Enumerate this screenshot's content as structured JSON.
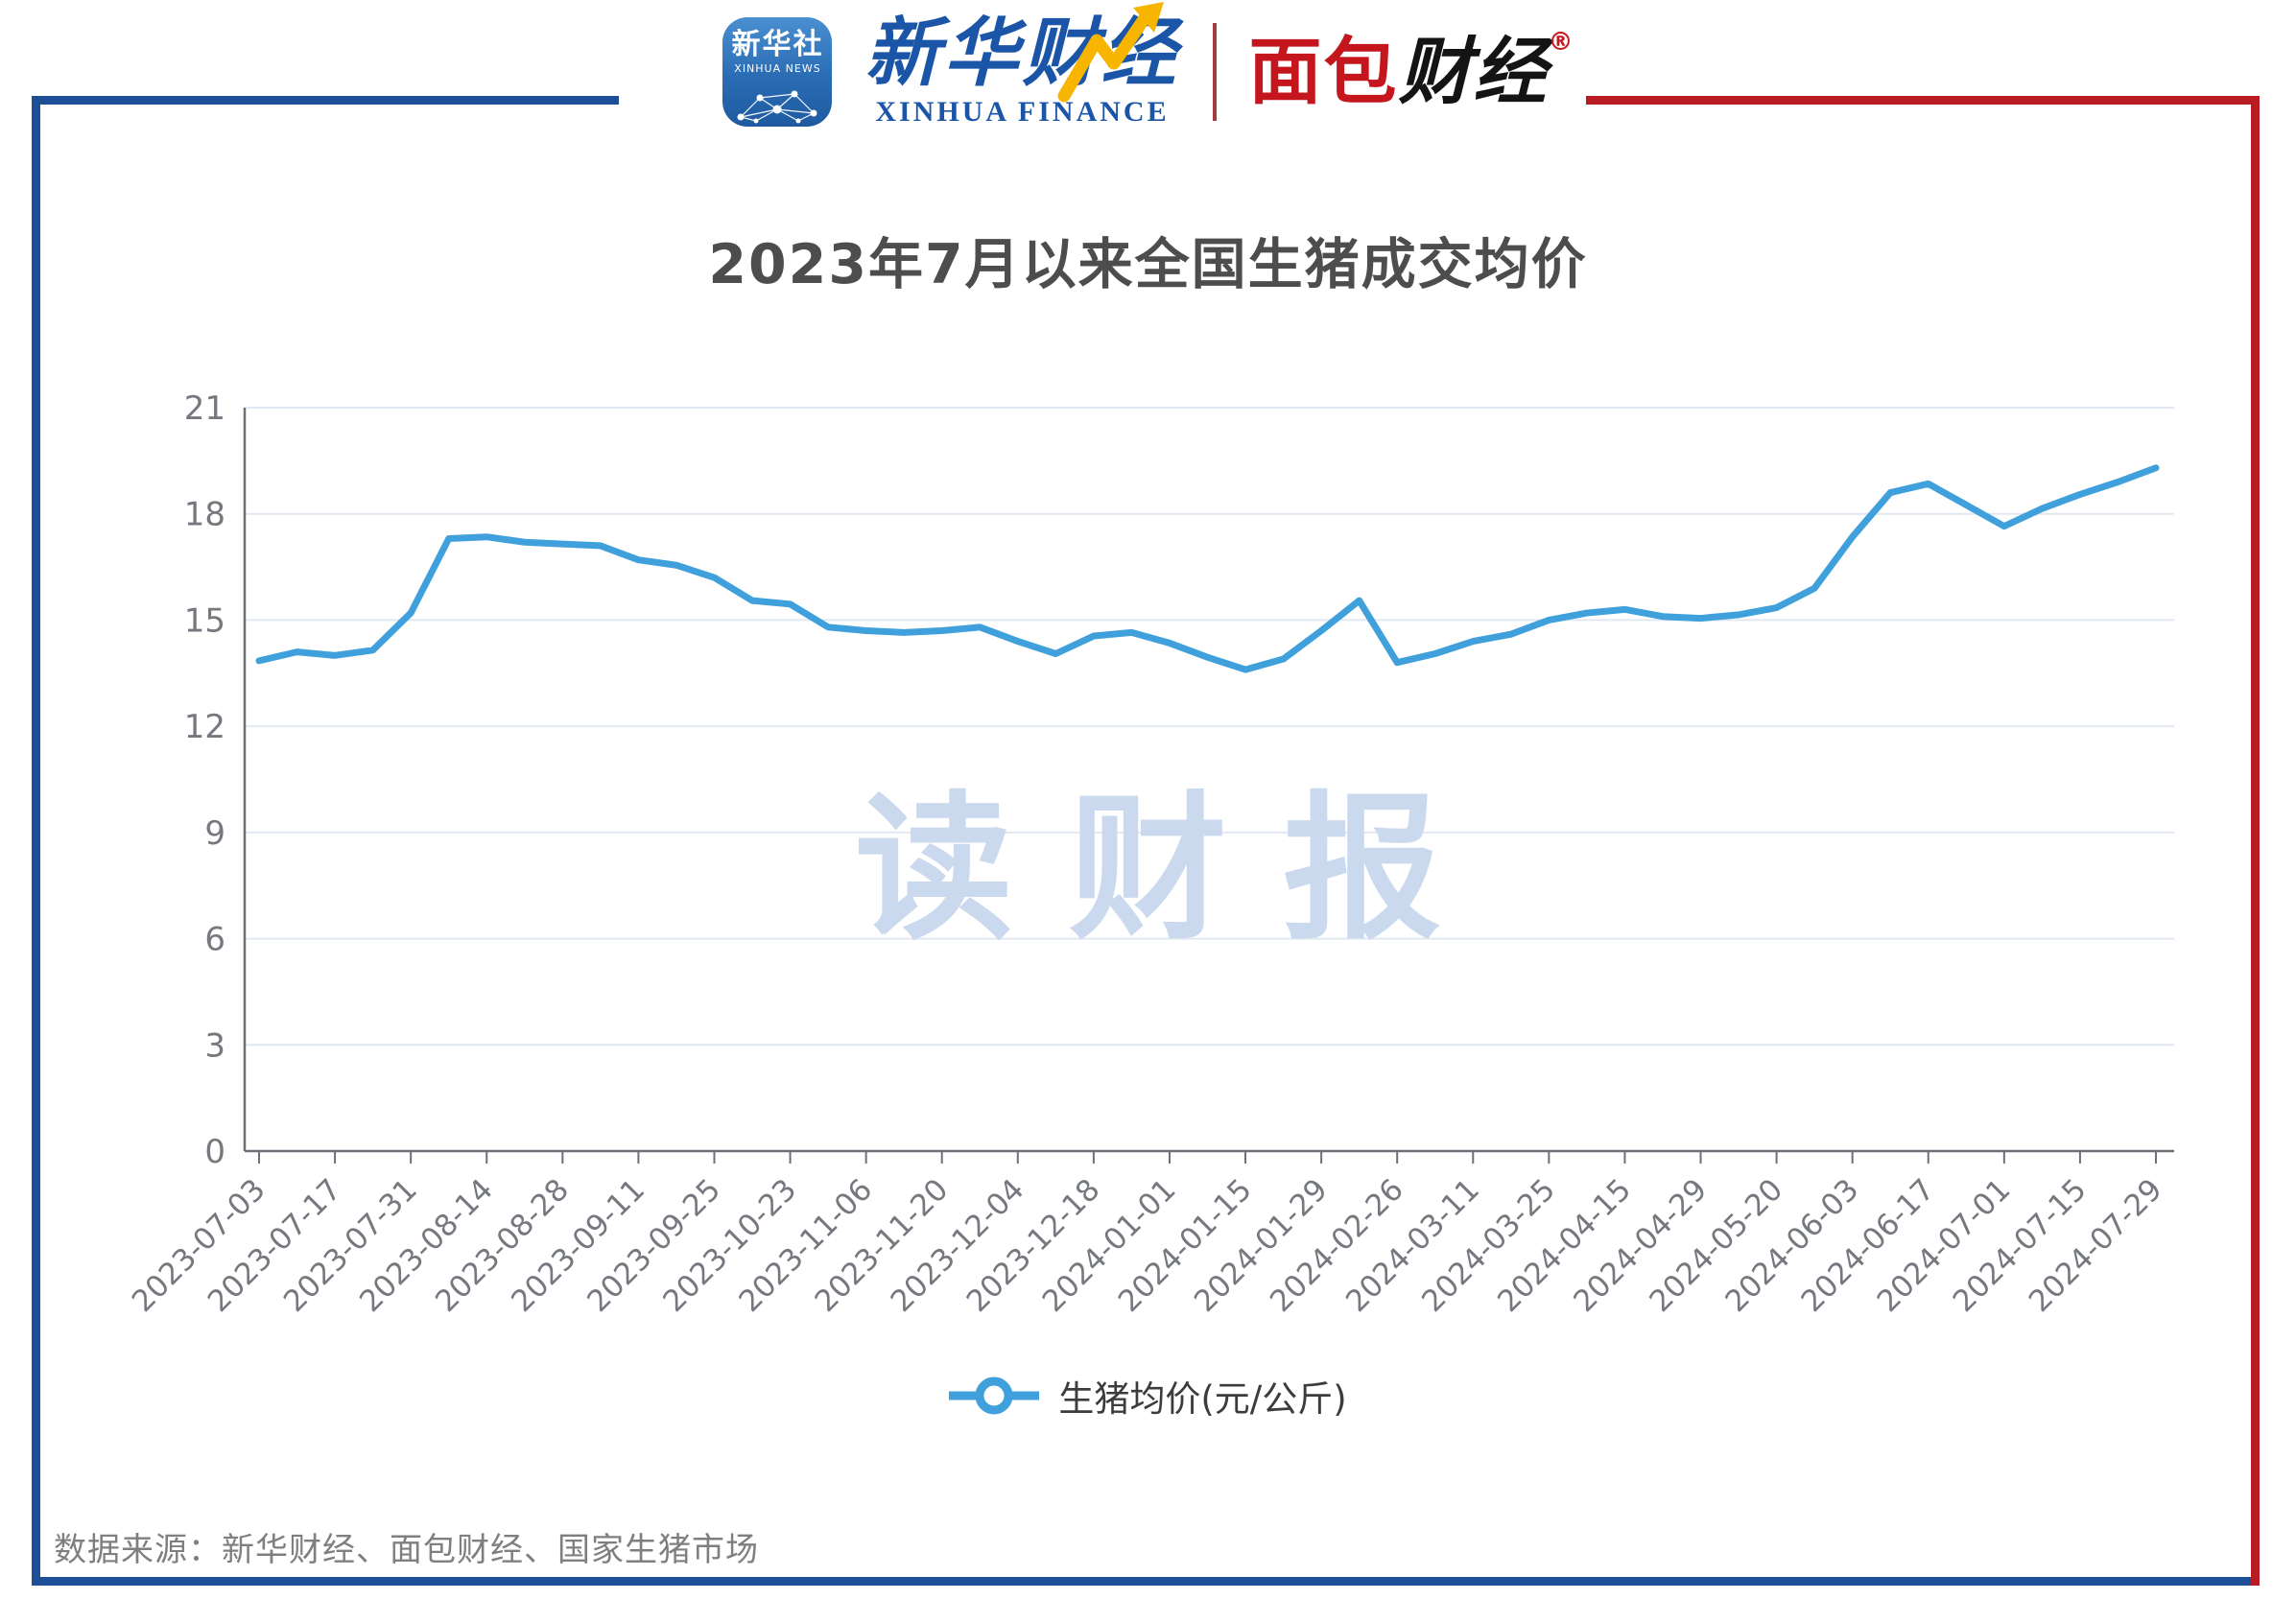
{
  "header": {
    "xinhua_icon": {
      "cn": "新华社",
      "en": "XINHUA NEWS"
    },
    "xinhua_finance": {
      "cn": "新华财经",
      "en": "XINHUA FINANCE"
    },
    "mianbao": {
      "cn_red": "面包",
      "cn_black": "财经",
      "reg_mark": "®"
    }
  },
  "watermark": "读财报",
  "legend": {
    "label": "生猪均价(元/公斤)"
  },
  "footer": {
    "source": "数据来源：新华财经、面包财经、国家生猪市场"
  },
  "colors": {
    "line": "#3fa0dc",
    "grid": "#e2e8f2",
    "axis": "#6e7079",
    "tick_text": "#75787e",
    "title_text": "#4d4d4d",
    "navy_border": "#1e4e96",
    "red_border": "#b81c22",
    "watermark": "#cbd9ef"
  },
  "chart_data": {
    "type": "line",
    "title": "2023年7月以来全国生猪成交均价",
    "series_name": "生猪均价(元/公斤)",
    "x_tick_labels": [
      "2023-07-03",
      "2023-07-17",
      "2023-07-31",
      "2023-08-14",
      "2023-08-28",
      "2023-09-11",
      "2023-09-25",
      "2023-10-23",
      "2023-11-06",
      "2023-11-20",
      "2023-12-04",
      "2023-12-18",
      "2024-01-01",
      "2024-01-15",
      "2024-01-29",
      "2024-02-26",
      "2024-03-11",
      "2024-03-25",
      "2024-04-15",
      "2024-04-29",
      "2024-05-20",
      "2024-06-03",
      "2024-06-17",
      "2024-07-01",
      "2024-07-15",
      "2024-07-29"
    ],
    "label_every": 2,
    "values": [
      13.85,
      14.1,
      14.0,
      14.15,
      15.2,
      17.3,
      17.35,
      17.2,
      17.15,
      17.1,
      16.7,
      16.55,
      16.2,
      15.55,
      15.45,
      14.8,
      14.7,
      14.65,
      14.7,
      14.8,
      14.4,
      14.05,
      14.55,
      14.65,
      14.35,
      13.95,
      13.6,
      13.9,
      14.7,
      15.55,
      13.8,
      14.05,
      14.4,
      14.6,
      15.0,
      15.2,
      15.3,
      15.1,
      15.05,
      15.15,
      15.35,
      15.9,
      17.35,
      18.6,
      18.85,
      18.25,
      17.65,
      18.15,
      18.55,
      18.9,
      19.3
    ],
    "ylim": [
      0,
      21
    ],
    "y_ticks": [
      0,
      3,
      6,
      9,
      12,
      15,
      18,
      21
    ],
    "grid": true,
    "legend_position": "bottom",
    "x_axis_label_rotation": -45
  }
}
